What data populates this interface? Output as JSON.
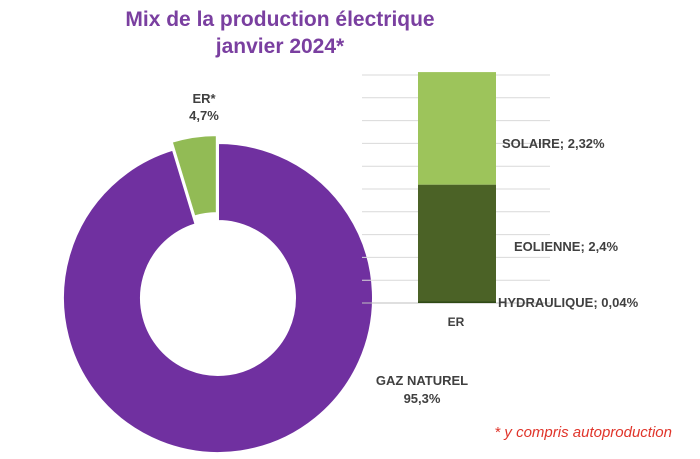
{
  "title": [
    "Mix de la production électrique",
    "janvier 2024*"
  ],
  "footnote": "* y compris autoproduction",
  "colors": {
    "title": "#7a3fa0",
    "gaz": "#7030a0",
    "er": "#92bb55",
    "solaire": "#9dc45b",
    "eolienne": "#4b6226",
    "hydraulique": "#2f4a14",
    "footnote": "#e0342a"
  },
  "chart_data": [
    {
      "type": "pie",
      "variant": "donut",
      "slices": [
        {
          "name": "ER*",
          "value": 4.7,
          "label": "4,7%",
          "color": "#92bb55"
        },
        {
          "name": "GAZ NATUREL",
          "value": 95.3,
          "label": "95,3%",
          "color": "#7030a0"
        }
      ]
    },
    {
      "type": "bar",
      "stacked": true,
      "categories": [
        "ER"
      ],
      "ylim": [
        0,
        4.7
      ],
      "grid": true,
      "series": [
        {
          "name": "HYDRAULIQUE",
          "label": "HYDRAULIQUE; 0,04%",
          "values": [
            0.04
          ],
          "color": "#2f4a14"
        },
        {
          "name": "EOLIENNE",
          "label": "EOLIENNE; 2,4%",
          "values": [
            2.4
          ],
          "color": "#4b6226"
        },
        {
          "name": "SOLAIRE",
          "label": "SOLAIRE; 2,32%",
          "values": [
            2.32
          ],
          "color": "#9dc45b"
        }
      ]
    }
  ]
}
